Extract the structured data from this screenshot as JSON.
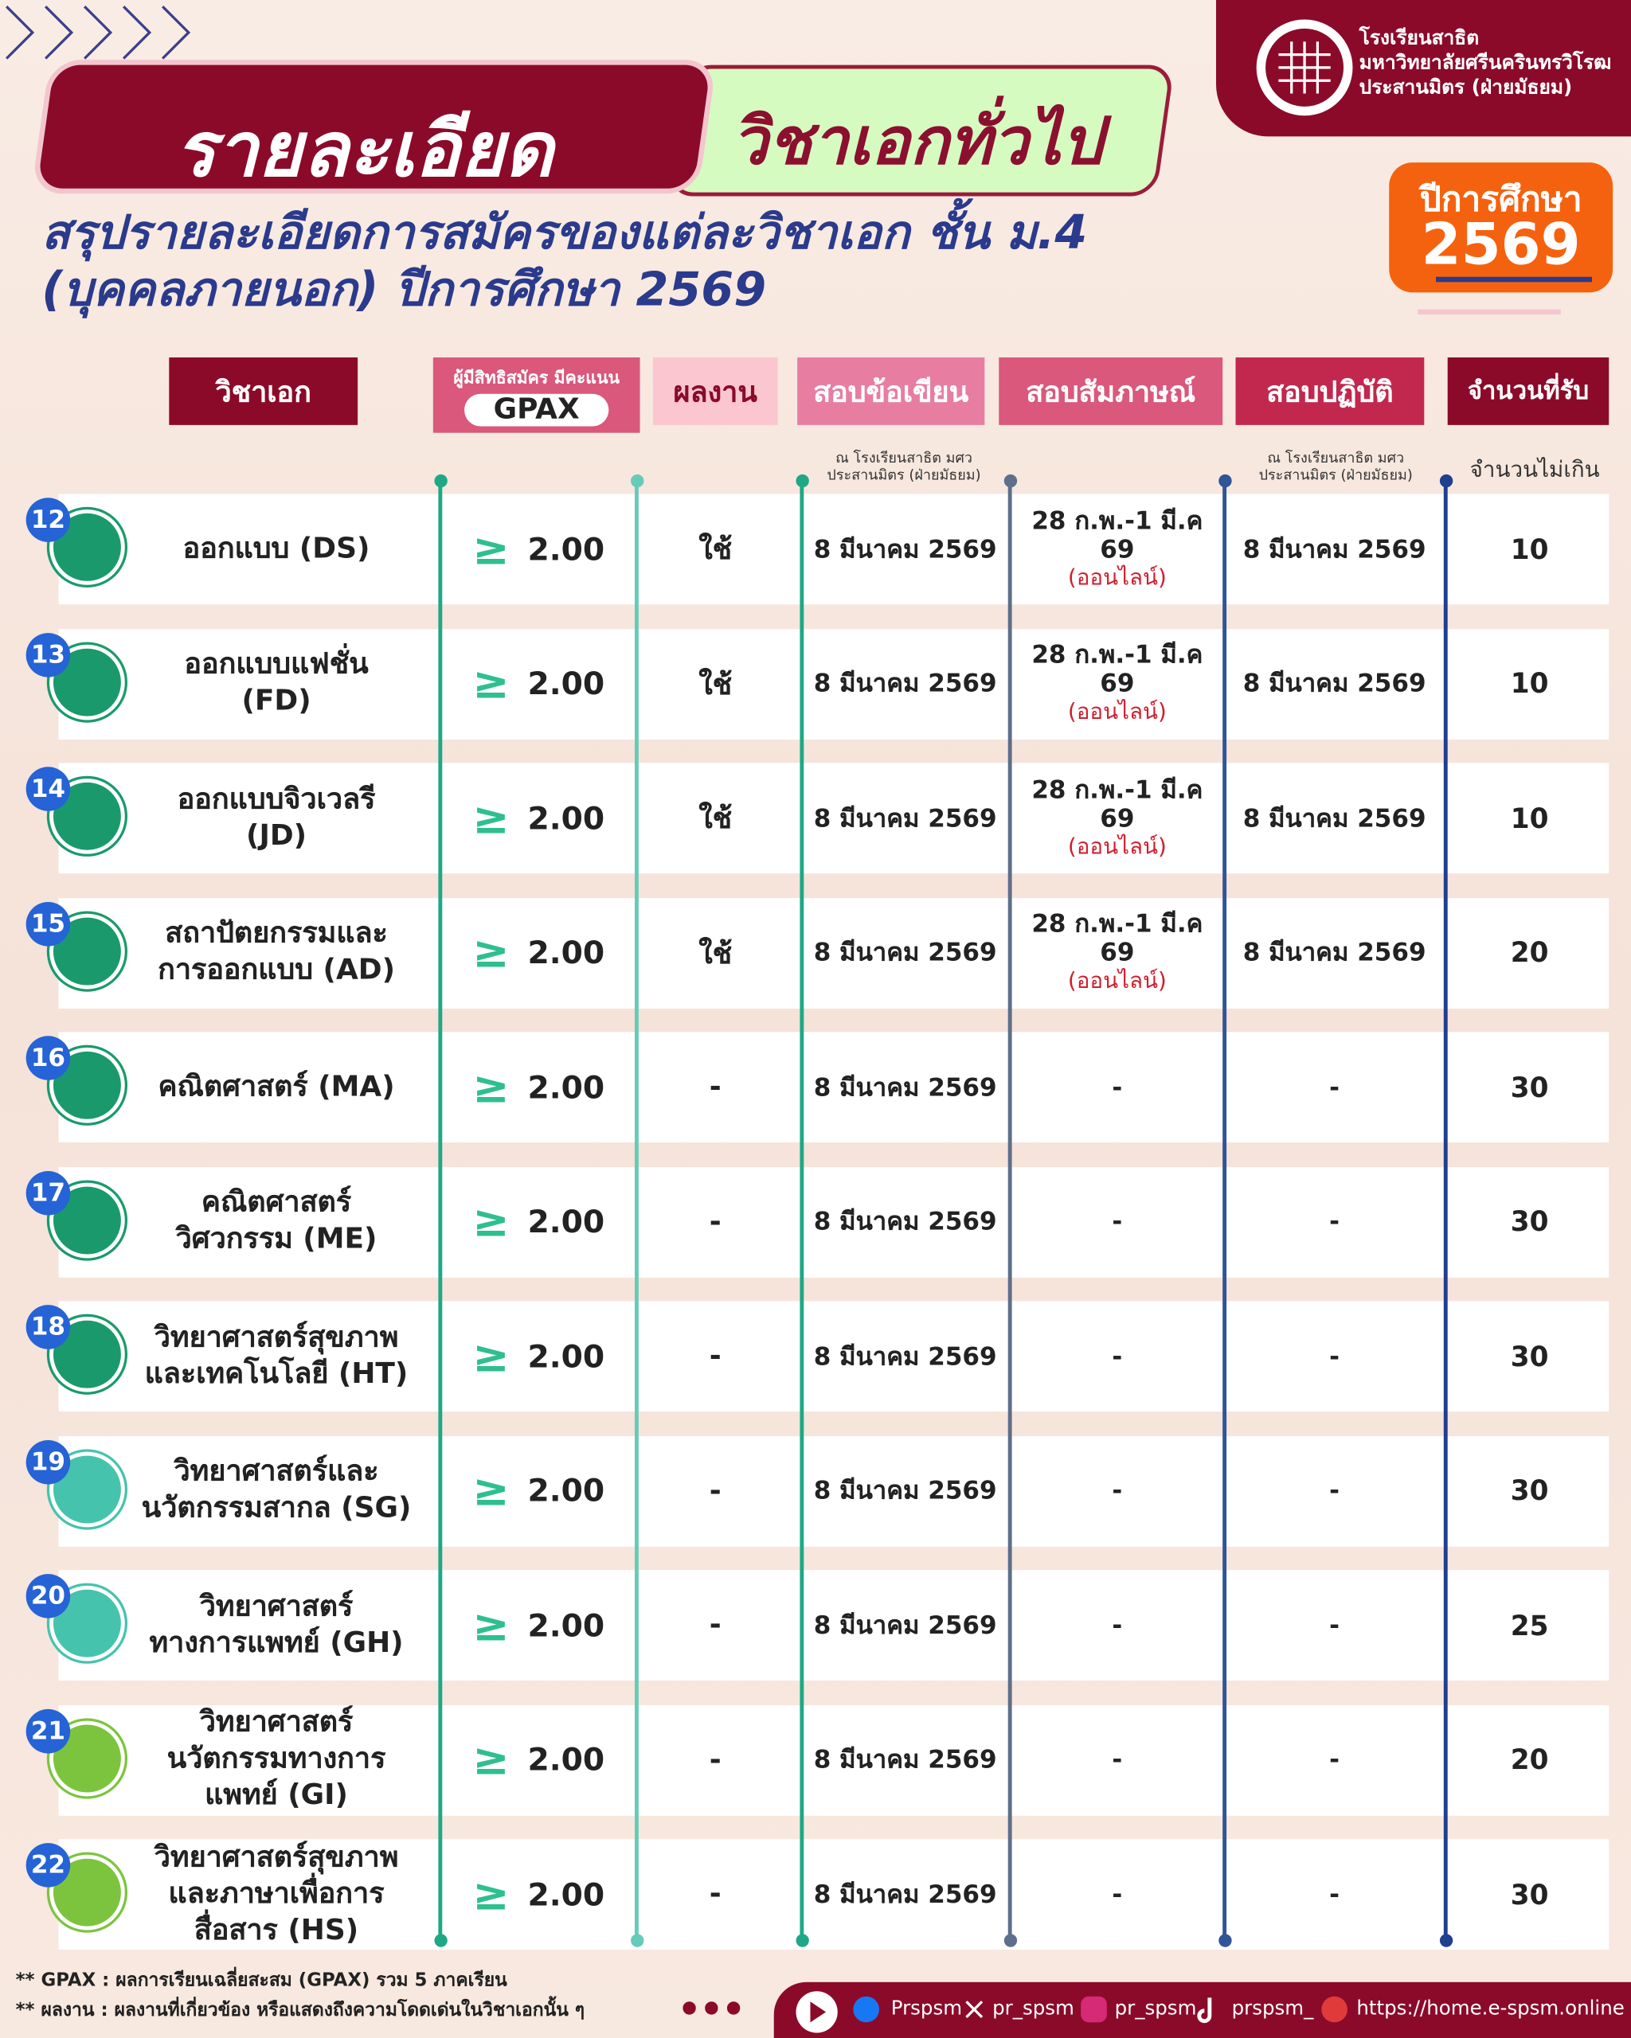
{
  "header": {
    "title_left": "รายละเอียด",
    "title_right": "วิชาเอกทั่วไป",
    "school": [
      "โรงเรียนสาธิต",
      "มหาวิทยาลัยศรีนครินทรวิโรฒ",
      "ประสานมิตร (ฝ่ายมัธยม)"
    ],
    "year_label": "ปีการศึกษา",
    "year": "2569",
    "subtitle": [
      "สรุปรายละเอียดการสมัครของแต่ละวิชาเอก ชั้น ม.4",
      "(บุคคลภายนอก) ปีการศึกษา 2569"
    ]
  },
  "table": {
    "columns": {
      "major": "วิชาเอก",
      "gpax_note": "ผู้มีสิทธิสมัคร มีคะแนน",
      "gpax": "GPAX",
      "portfolio": "ผลงาน",
      "written": "สอบข้อเขียน",
      "interview": "สอบสัมภาษณ์",
      "practical": "สอบปฏิบัติ",
      "seats": "จำนวนที่รับ"
    },
    "notes": {
      "written": [
        "ณ โรงเรียนสาธิต มศว",
        "ประสานมิตร (ฝ่ายมัธยม)"
      ],
      "practical": [
        "ณ โรงเรียนสาธิต มศว",
        "ประสานมิตร (ฝ่ายมัธยม)"
      ],
      "seats": "จำนวนไม่เกิน"
    },
    "rows": [
      {
        "no": "12",
        "name": [
          "ออกแบบ (DS)"
        ],
        "gpax_symbol": "≥",
        "gpax": "2.00",
        "portfolio": "ใช้",
        "written": "8 มีนาคม 2569",
        "interview": "28 ก.พ.-1 มี.ค 69",
        "interview_note": "(ออนไลน์)",
        "practical": "8 มีนาคม 2569",
        "seats": 10
      },
      {
        "no": "13",
        "name": [
          "ออกแบบแฟชั่น",
          "(FD)"
        ],
        "gpax_symbol": "≥",
        "gpax": "2.00",
        "portfolio": "ใช้",
        "written": "8 มีนาคม 2569",
        "interview": "28 ก.พ.-1 มี.ค 69",
        "interview_note": "(ออนไลน์)",
        "practical": "8 มีนาคม 2569",
        "seats": 10
      },
      {
        "no": "14",
        "name": [
          "ออกแบบจิวเวลรี",
          "(JD)"
        ],
        "gpax_symbol": "≥",
        "gpax": "2.00",
        "portfolio": "ใช้",
        "written": "8 มีนาคม 2569",
        "interview": "28 ก.พ.-1 มี.ค 69",
        "interview_note": "(ออนไลน์)",
        "practical": "8 มีนาคม 2569",
        "seats": 10
      },
      {
        "no": "15",
        "name": [
          "สถาปัตยกรรมและ",
          "การออกแบบ (AD)"
        ],
        "gpax_symbol": "≥",
        "gpax": "2.00",
        "portfolio": "ใช้",
        "written": "8 มีนาคม 2569",
        "interview": "28 ก.พ.-1 มี.ค 69",
        "interview_note": "(ออนไลน์)",
        "practical": "8 มีนาคม 2569",
        "seats": 20
      },
      {
        "no": "16",
        "name": [
          "คณิตศาสตร์ (MA)"
        ],
        "gpax_symbol": "≥",
        "gpax": "2.00",
        "portfolio": "-",
        "written": "8 มีนาคม 2569",
        "interview": "-",
        "practical": "-",
        "seats": 30
      },
      {
        "no": "17",
        "name": [
          "คณิตศาสตร์",
          "วิศวกรรม (ME)"
        ],
        "gpax_symbol": "≥",
        "gpax": "2.00",
        "portfolio": "-",
        "written": "8 มีนาคม 2569",
        "interview": "-",
        "practical": "-",
        "seats": 30
      },
      {
        "no": "18",
        "name": [
          "วิทยาศาสตร์สุขภาพ",
          "และเทคโนโลยี (HT)"
        ],
        "gpax_symbol": "≥",
        "gpax": "2.00",
        "portfolio": "-",
        "written": "8 มีนาคม 2569",
        "interview": "-",
        "practical": "-",
        "seats": 30
      },
      {
        "no": "19",
        "name": [
          "วิทยาศาสตร์และ",
          "นวัตกรรมสากล (SG)"
        ],
        "gpax_symbol": "≥",
        "gpax": "2.00",
        "portfolio": "-",
        "written": "8 มีนาคม 2569",
        "interview": "-",
        "practical": "-",
        "seats": 30
      },
      {
        "no": "20",
        "name": [
          "วิทยาศาสตร์",
          "ทางการแพทย์ (GH)"
        ],
        "gpax_symbol": "≥",
        "gpax": "2.00",
        "portfolio": "-",
        "written": "8 มีนาคม 2569",
        "interview": "-",
        "practical": "-",
        "seats": 25
      },
      {
        "no": "21",
        "name": [
          "วิทยาศาสตร์",
          "นวัตกรรมทางการ",
          "แพทย์ (GI)"
        ],
        "gpax_symbol": "≥",
        "gpax": "2.00",
        "portfolio": "-",
        "written": "8 มีนาคม 2569",
        "interview": "-",
        "practical": "-",
        "seats": 20
      },
      {
        "no": "22",
        "name": [
          "วิทยาศาสตร์สุขภาพ",
          "และภาษาเพื่อการ",
          "สื่อสาร (HS)"
        ],
        "gpax_symbol": "≥",
        "gpax": "2.00",
        "portfolio": "-",
        "written": "8 มีนาคม 2569",
        "interview": "-",
        "practical": "-",
        "seats": 30
      }
    ]
  },
  "footnotes": [
    "** GPAX : ผลการเรียนเฉลี่ยสะสม (GPAX) รวม 5 ภาคเรียน",
    "** ผลงาน : ผลงานที่เกี่ยวข้อง หรือแสดงถึงความโดดเด่นในวิชาเอกนั้น ๆ"
  ],
  "footer": {
    "facebook": "Prspsm",
    "x": "pr_spsm",
    "instagram": "pr_spsm",
    "tiktok": "prspsm_",
    "website": "https://home.e-spsm.online"
  }
}
